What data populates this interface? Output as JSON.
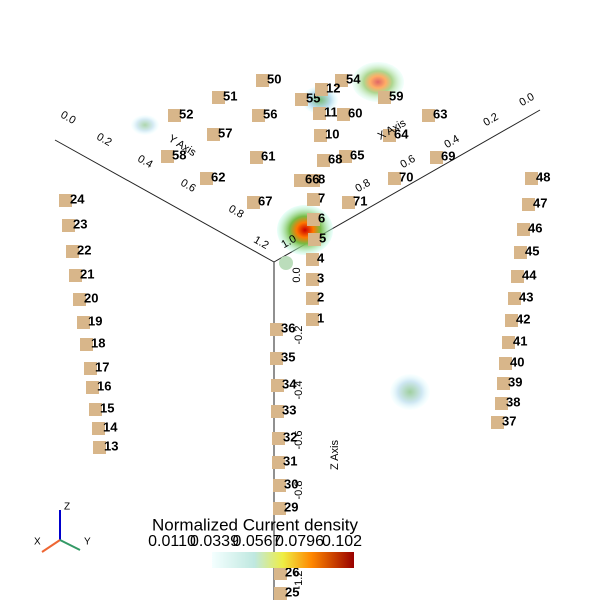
{
  "electrodes": [
    "24",
    "23",
    "22",
    "21",
    "20",
    "19",
    "18",
    "17",
    "16",
    "15",
    "14",
    "13",
    "48",
    "47",
    "46",
    "45",
    "44",
    "43",
    "42",
    "41",
    "40",
    "39",
    "38",
    "37",
    "36",
    "35",
    "34",
    "33",
    "32",
    "31",
    "30",
    "29",
    "26",
    "25",
    "1",
    "2",
    "3",
    "4",
    "5",
    "6",
    "7",
    "8",
    "50",
    "51",
    "52",
    "54",
    "55",
    "56",
    "57",
    "58",
    "59",
    "12",
    "11",
    "60",
    "61",
    "62",
    "63",
    "64",
    "10",
    "65",
    "66",
    "68",
    "67",
    "69",
    "70",
    "71"
  ],
  "axes": {
    "x": {
      "title": "X Axis",
      "ticks": [
        "1.0",
        "0.8",
        "0.6",
        "0.4",
        "0.2",
        "0.0"
      ]
    },
    "y": {
      "title": "Y Axis",
      "ticks": [
        "0.0",
        "0.2",
        "0.4",
        "0.6",
        "0.8",
        "1.2"
      ]
    },
    "z": {
      "title": "Z Axis",
      "ticks": [
        "0.0",
        "-0.2",
        "-0.4",
        "-0.6",
        "-0.8",
        "-1.2"
      ]
    }
  },
  "colorbar": {
    "title": "Normalized Current density",
    "ticks": [
      "0.0110",
      "0.0339",
      "0.0567",
      "0.0796",
      "0.102"
    ]
  },
  "orientation": {
    "x": "X",
    "y": "Y",
    "z": "Z"
  }
}
